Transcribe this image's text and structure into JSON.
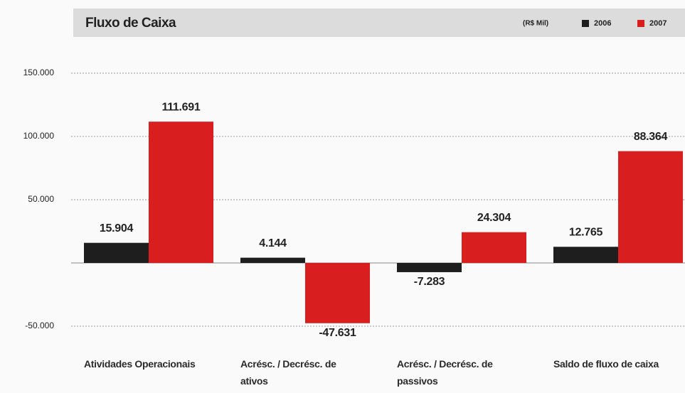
{
  "chart_data": {
    "type": "bar",
    "title": "Fluxo de Caixa",
    "unit": "(R$ Mil)",
    "categories": [
      "Atividades Operacionais",
      "Acrésc. / Decrésc. de ativos",
      "Acrésc. / Decrésc. de passivos",
      "Saldo de fluxo de caixa"
    ],
    "series": [
      {
        "name": "2006",
        "color": "#1e1e1e",
        "values": [
          15904,
          4144,
          -7283,
          12765
        ],
        "value_labels": [
          "15.904",
          "4.144",
          "-7.283",
          "12.765"
        ]
      },
      {
        "name": "2007",
        "color": "#d81e1e",
        "values": [
          111691,
          -47631,
          24304,
          88364
        ],
        "value_labels": [
          "111.691",
          "-47.631",
          "24.304",
          "88.364"
        ]
      }
    ],
    "ylim": [
      -50000,
      150000
    ],
    "yticks": [
      {
        "value": 150000,
        "label": "150.000"
      },
      {
        "value": 100000,
        "label": "100.000"
      },
      {
        "value": 50000,
        "label": "50.000"
      },
      {
        "value": -50000,
        "label": "-50.000"
      }
    ],
    "grid": true
  }
}
